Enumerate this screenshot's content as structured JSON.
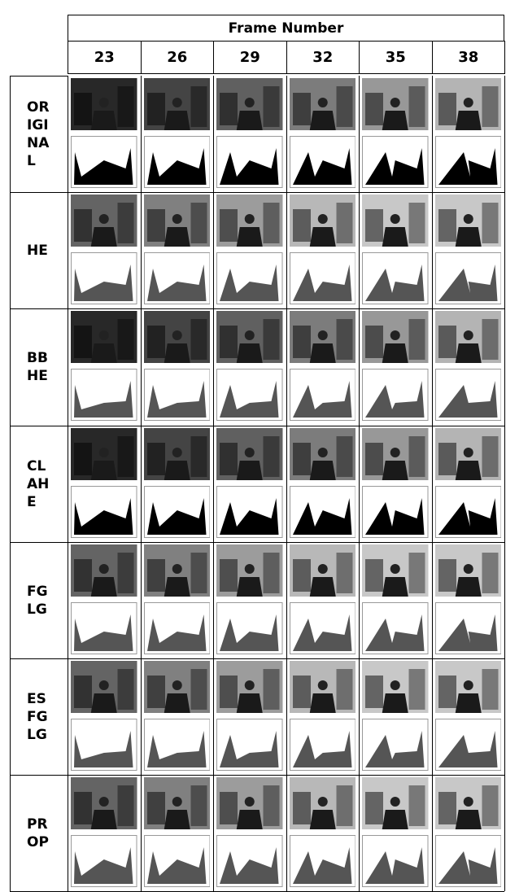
{
  "header": {
    "title": "Frame Number",
    "frames": [
      23,
      26,
      29,
      32,
      35,
      38
    ]
  },
  "rows": [
    {
      "label": "ORIGINAL"
    },
    {
      "label": "HE"
    },
    {
      "label": "BBHE"
    },
    {
      "label": "CLAHE"
    },
    {
      "label": "FGLG"
    },
    {
      "label": "ESFGLG"
    },
    {
      "label": "PROP"
    }
  ]
}
